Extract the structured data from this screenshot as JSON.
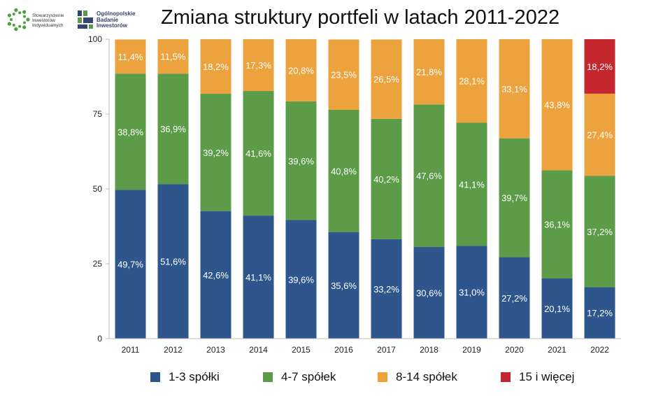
{
  "header": {
    "title": "Zmiana struktury portfeli w latach 2011-2022",
    "logo_sii_lines": [
      "Stowarzyszenie",
      "Inwestorów",
      "Indywidualnych"
    ],
    "logo_obi_lines": [
      "Ogólnopolskie",
      "Badanie",
      "Inwestorów"
    ],
    "logo_sii_icon": "dotted-circle-icon",
    "logo_obi_icon": "building-blocks-icon"
  },
  "colors": {
    "s1": "#2e568d",
    "s2": "#5c9b48",
    "s3": "#eca33d",
    "s4": "#c4272d",
    "axis": "#bfbfbf",
    "text": "#111111"
  },
  "legend": [
    {
      "label": "1-3 spółki",
      "color_key": "s1"
    },
    {
      "label": "4-7 spółek",
      "color_key": "s2"
    },
    {
      "label": "8-14 spółek",
      "color_key": "s3"
    },
    {
      "label": "15 i więcej",
      "color_key": "s4"
    }
  ],
  "chart_data": {
    "type": "bar",
    "stacked": true,
    "title": "Zmiana struktury portfeli w latach 2011-2022",
    "categories": [
      "2011",
      "2012",
      "2013",
      "2014",
      "2015",
      "2016",
      "2017",
      "2018",
      "2019",
      "2020",
      "2021",
      "2022"
    ],
    "ylim": [
      0,
      100
    ],
    "yticks": [
      "0",
      "25",
      "50",
      "75",
      "100"
    ],
    "series": [
      {
        "name": "1-3 spółki",
        "values": [
          49.7,
          51.6,
          42.6,
          41.1,
          39.6,
          35.6,
          33.2,
          30.6,
          31.0,
          27.2,
          20.1,
          17.2
        ],
        "labels": [
          "49,7%",
          "51,6%",
          "42,6%",
          "41,1%",
          "39,6%",
          "35,6%",
          "33,2%",
          "30,6%",
          "31,0%",
          "27,2%",
          "20,1%",
          "17,2%"
        ]
      },
      {
        "name": "4-7 spółek",
        "values": [
          38.8,
          36.9,
          39.2,
          41.6,
          39.6,
          40.8,
          40.2,
          47.6,
          41.1,
          39.7,
          36.1,
          37.2
        ],
        "labels": [
          "38,8%",
          "36,9%",
          "39,2%",
          "41,6%",
          "39,6%",
          "40,8%",
          "40,2%",
          "47,6%",
          "41,1%",
          "39,7%",
          "36,1%",
          "37,2%"
        ]
      },
      {
        "name": "8-14 spółek",
        "values": [
          11.4,
          11.5,
          18.2,
          17.3,
          20.8,
          23.5,
          26.5,
          21.8,
          28.1,
          33.1,
          43.8,
          27.4
        ],
        "labels": [
          "11,4%",
          "11,5%",
          "18,2%",
          "17,3%",
          "20,8%",
          "23,5%",
          "26,5%",
          "21,8%",
          "28,1%",
          "33,1%",
          "43,8%",
          "27,4%"
        ]
      },
      {
        "name": "15 i więcej",
        "values": [
          0,
          0,
          0,
          0,
          0,
          0,
          0,
          0,
          0,
          0,
          0,
          18.2
        ],
        "labels": [
          "",
          "",
          "",
          "",
          "",
          "",
          "",
          "",
          "",
          "",
          "",
          "18,2%"
        ]
      }
    ],
    "legend_position": "bottom",
    "grid": false
  }
}
